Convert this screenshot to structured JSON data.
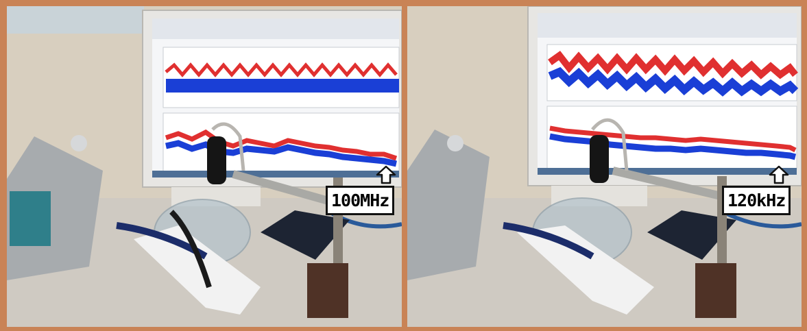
{
  "panels": [
    {
      "id": "left",
      "frequency_label": "100MHz"
    },
    {
      "id": "right",
      "frequency_label": "120kHz"
    }
  ],
  "icons": {
    "annotation_arrow": "up-arrow-icon"
  },
  "colors": {
    "border": "#c98356",
    "trace_red": "#e03030",
    "trace_blue": "#1a3fd6",
    "label_bg": "#ffffff"
  }
}
